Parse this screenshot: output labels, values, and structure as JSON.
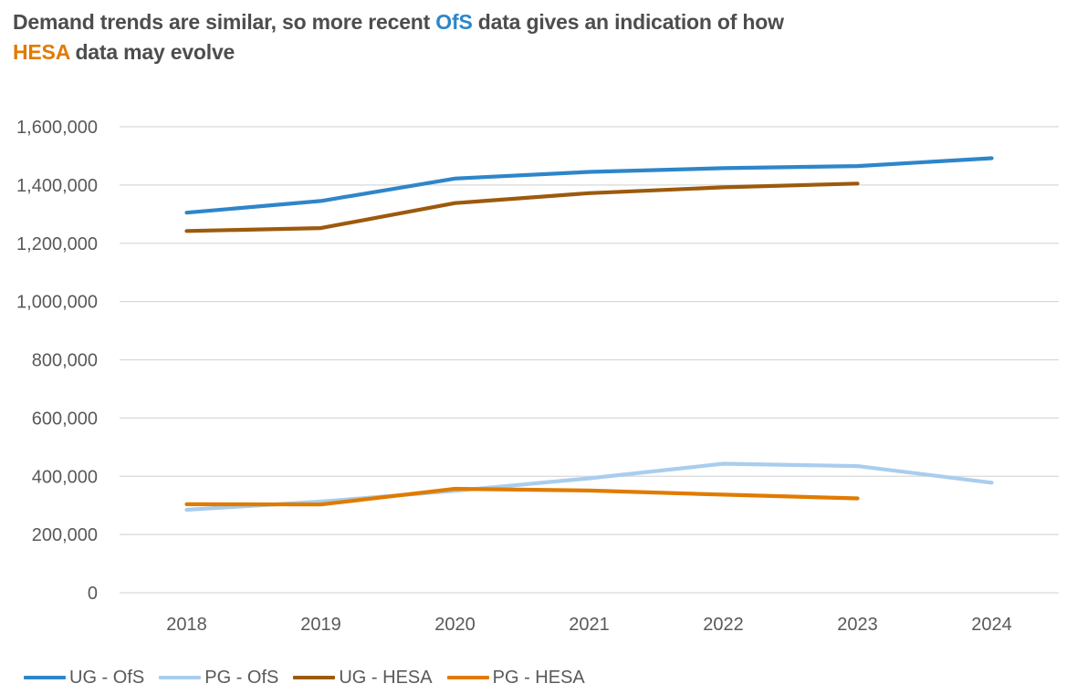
{
  "title": {
    "part1": "Demand trends are similar, so more recent ",
    "ofs": "OfS",
    "part2": " data gives an indication of how",
    "hesa": "HESA",
    "part3": " data may evolve"
  },
  "colors": {
    "ofs_highlight": "#2e86c9",
    "hesa_highlight": "#e07b00",
    "grid": "#d9d9d9",
    "tick_text": "#595959"
  },
  "chart_data": {
    "type": "line",
    "x": [
      "2018",
      "2019",
      "2020",
      "2021",
      "2022",
      "2023",
      "2024"
    ],
    "ylim": [
      0,
      1600000
    ],
    "yticks": [
      0,
      200000,
      400000,
      600000,
      800000,
      1000000,
      1200000,
      1400000,
      1600000
    ],
    "ytick_labels": [
      "0",
      "200,000",
      "400,000",
      "600,000",
      "800,000",
      "1,000,000",
      "1,200,000",
      "1,400,000",
      "1,600,000"
    ],
    "grid": true,
    "legend_position": "bottom-left",
    "series": [
      {
        "name": "UG - OfS",
        "color": "#2e86c9",
        "values": [
          1305000,
          1345000,
          1422000,
          1445000,
          1458000,
          1465000,
          1492000
        ]
      },
      {
        "name": "PG - OfS",
        "color": "#a9cdee",
        "values": [
          285000,
          313000,
          350000,
          393000,
          443000,
          435000,
          378000
        ]
      },
      {
        "name": "UG - HESA",
        "color": "#9c5a0d",
        "values": [
          1242000,
          1252000,
          1338000,
          1372000,
          1392000,
          1405000,
          null
        ]
      },
      {
        "name": "PG - HESA",
        "color": "#e07b00",
        "values": [
          304000,
          303000,
          357000,
          351000,
          337000,
          324000,
          null
        ]
      }
    ]
  }
}
